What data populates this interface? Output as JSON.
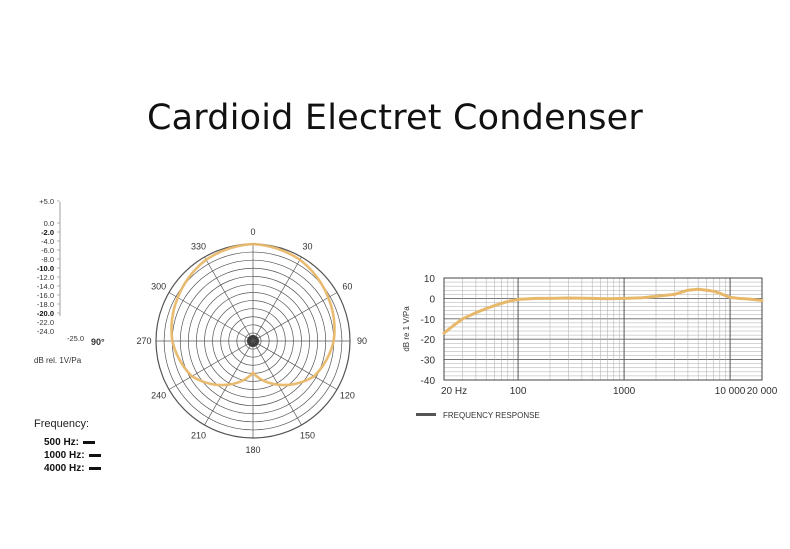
{
  "title": "Cardioid  Electret Condenser",
  "colors": {
    "curve": "#e8b86a",
    "grid": "#555555",
    "axis": "#333333"
  },
  "chart_data": [
    {
      "type": "polar",
      "scale_labels": [
        "+5.0",
        "0.0",
        "-2.0",
        "-4.0",
        "-6.0",
        "-8.0",
        "-10.0",
        "-12.0",
        "-14.0",
        "-16.0",
        "-18.0",
        "-20.0",
        "-22.0",
        "-24.0",
        "-25.0"
      ],
      "bold_scale_labels": [
        "-2.0",
        "-10.0",
        "-20.0"
      ],
      "scale_unit": "dB rel. 1V/Pa",
      "angle_indicator": "90°",
      "angle_labels": [
        "0",
        "30",
        "60",
        "90",
        "120",
        "150",
        "180",
        "210",
        "240",
        "270",
        "300",
        "330"
      ],
      "legend_title": "Frequency:",
      "legend": [
        {
          "label": "500 Hz:"
        },
        {
          "label": "1000 Hz:"
        },
        {
          "label": "4000 Hz:"
        }
      ],
      "rlim": [
        -25,
        0
      ],
      "series": [
        {
          "angles": [
            0,
            30,
            60,
            90,
            120,
            150,
            180,
            210,
            240,
            270,
            300,
            330
          ],
          "values": [
            0,
            -0.8,
            -2.6,
            -4.2,
            -6.8,
            -12.0,
            -16.8,
            -12.0,
            -6.8,
            -4.2,
            -2.6,
            -0.8
          ]
        }
      ]
    },
    {
      "type": "line",
      "x_scale": "log",
      "ylabel": "dB re 1 V/Pa",
      "x_tick_labels": [
        "20 Hz",
        "100",
        "1000",
        "10 000",
        "20 000"
      ],
      "x_ticks": [
        20,
        100,
        1000,
        10000,
        20000
      ],
      "y_ticks": [
        10,
        0,
        -10,
        -20,
        -30,
        -40
      ],
      "xlim": [
        20,
        20000
      ],
      "ylim": [
        -40,
        10
      ],
      "legend": "FREQUENCY RESPONSE",
      "series": [
        {
          "x": [
            20,
            25,
            30,
            40,
            50,
            60,
            80,
            100,
            150,
            200,
            300,
            500,
            700,
            1000,
            1500,
            2000,
            3000,
            4000,
            5000,
            6000,
            7000,
            8000,
            10000,
            12000,
            15000,
            20000
          ],
          "y": [
            -17,
            -13,
            -10,
            -7,
            -5,
            -3.5,
            -1.5,
            -0.5,
            0,
            0,
            0.2,
            0,
            -0.2,
            0,
            0.3,
            1,
            2,
            4,
            4.5,
            4,
            3.5,
            2.5,
            0.5,
            0,
            -0.3,
            -1
          ]
        }
      ]
    }
  ]
}
